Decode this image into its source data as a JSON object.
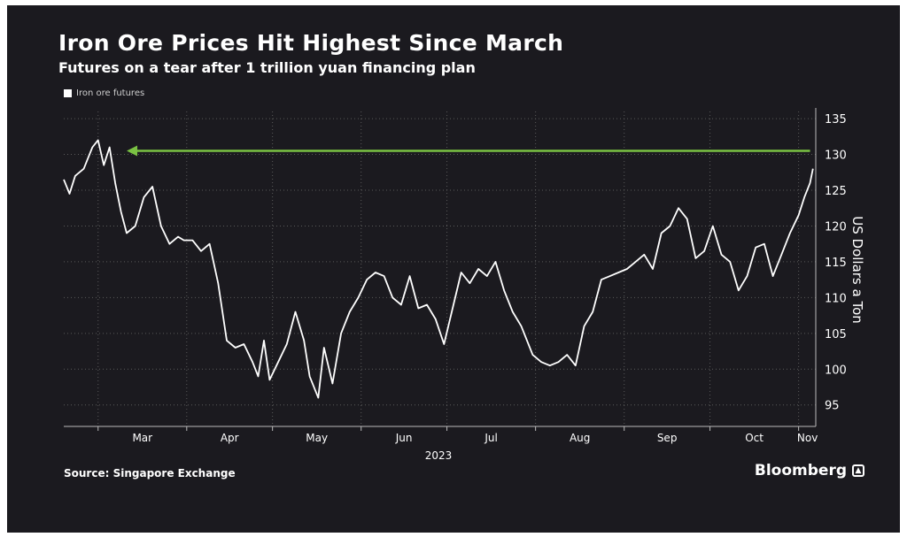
{
  "header": {
    "title": "Iron Ore Prices Hit Highest Since March",
    "subtitle": "Futures on a tear after 1 trillion yuan financing plan"
  },
  "legend": {
    "label": "Iron ore futures"
  },
  "footer": {
    "source": "Source: Singapore Exchange",
    "brand": "Bloomberg"
  },
  "colors": {
    "background": "#1b1a1f",
    "line": "#ffffff",
    "arrow": "#7ac143",
    "grid": "#5a5a5a"
  },
  "chart_data": {
    "type": "line",
    "title": "Iron Ore Prices Hit Highest Since March",
    "subtitle": "Futures on a tear after 1 trillion yuan financing plan",
    "ylabel": "US Dollars a Ton",
    "xlabel": "2023",
    "ylim": [
      92,
      136
    ],
    "yticks": [
      95,
      100,
      105,
      110,
      115,
      120,
      125,
      130,
      135
    ],
    "y_axis_position": "right",
    "x_ticks": [
      "Mar",
      "Apr",
      "May",
      "Jun",
      "Jul",
      "Aug",
      "Sep",
      "Oct",
      "Nov"
    ],
    "x_tick_dates": [
      "2023-03-01",
      "2023-04-01",
      "2023-05-01",
      "2023-06-01",
      "2023-07-01",
      "2023-08-01",
      "2023-09-01",
      "2023-10-01",
      "2023-11-01"
    ],
    "xlim": [
      "2023-02-17",
      "2023-11-07"
    ],
    "grid": "dotted",
    "legend": "top-left",
    "series": [
      {
        "name": "Iron ore futures",
        "x": [
          "2023-02-17",
          "2023-02-19",
          "2023-02-21",
          "2023-02-24",
          "2023-02-27",
          "2023-03-01",
          "2023-03-03",
          "2023-03-05",
          "2023-03-07",
          "2023-03-09",
          "2023-03-11",
          "2023-03-14",
          "2023-03-17",
          "2023-03-20",
          "2023-03-23",
          "2023-03-26",
          "2023-03-29",
          "2023-03-31",
          "2023-04-03",
          "2023-04-06",
          "2023-04-09",
          "2023-04-12",
          "2023-04-15",
          "2023-04-18",
          "2023-04-21",
          "2023-04-24",
          "2023-04-26",
          "2023-04-28",
          "2023-04-30",
          "2023-05-03",
          "2023-05-06",
          "2023-05-09",
          "2023-05-12",
          "2023-05-14",
          "2023-05-17",
          "2023-05-19",
          "2023-05-22",
          "2023-05-25",
          "2023-05-28",
          "2023-05-31",
          "2023-06-03",
          "2023-06-06",
          "2023-06-09",
          "2023-06-12",
          "2023-06-15",
          "2023-06-18",
          "2023-06-21",
          "2023-06-24",
          "2023-06-27",
          "2023-06-30",
          "2023-07-03",
          "2023-07-06",
          "2023-07-09",
          "2023-07-12",
          "2023-07-15",
          "2023-07-18",
          "2023-07-21",
          "2023-07-24",
          "2023-07-27",
          "2023-07-31",
          "2023-08-03",
          "2023-08-06",
          "2023-08-09",
          "2023-08-12",
          "2023-08-15",
          "2023-08-18",
          "2023-08-21",
          "2023-08-24",
          "2023-08-27",
          "2023-08-30",
          "2023-09-02",
          "2023-09-05",
          "2023-09-08",
          "2023-09-11",
          "2023-09-14",
          "2023-09-17",
          "2023-09-20",
          "2023-09-23",
          "2023-09-26",
          "2023-09-29",
          "2023-10-02",
          "2023-10-05",
          "2023-10-08",
          "2023-10-11",
          "2023-10-14",
          "2023-10-17",
          "2023-10-20",
          "2023-10-23",
          "2023-10-26",
          "2023-10-29",
          "2023-11-01",
          "2023-11-03",
          "2023-11-05",
          "2023-11-06"
        ],
        "values": [
          126.5,
          124.5,
          127,
          128,
          131,
          132,
          128.5,
          131,
          126,
          122,
          119,
          120,
          124,
          125.5,
          120,
          117.5,
          118.5,
          118,
          118,
          116.5,
          117.5,
          112,
          104,
          103,
          103.5,
          101,
          99,
          104,
          98.5,
          101,
          103.5,
          108,
          104,
          99,
          96,
          103,
          98,
          105,
          108,
          110,
          112.5,
          113.5,
          113,
          110,
          109,
          113,
          108.5,
          109,
          107,
          103.5,
          108.5,
          113.5,
          112,
          114,
          113,
          115,
          111,
          108,
          106,
          102,
          101,
          100.5,
          101,
          102,
          100.5,
          106,
          108,
          112.5,
          113,
          113.5,
          114,
          115,
          116,
          114,
          119,
          120,
          122.5,
          121,
          115.5,
          116.5,
          120,
          116,
          115,
          111,
          113,
          117,
          117.5,
          113,
          116,
          119,
          121.5,
          124,
          126,
          128
        ]
      }
    ],
    "annotation": {
      "type": "arrow",
      "from": [
        "2023-11-05",
        130.5
      ],
      "to": [
        "2023-03-11",
        130.5
      ],
      "color": "#7ac143"
    }
  }
}
